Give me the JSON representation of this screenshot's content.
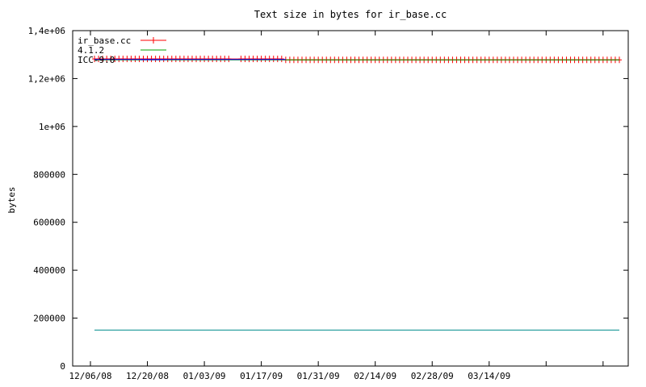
{
  "chart_data": {
    "type": "line",
    "title": "Text size in bytes for ir_base.cc",
    "xlabel": "",
    "ylabel": "bytes",
    "xlim": [
      "2008-12-06",
      "2009-04-15"
    ],
    "ylim": [
      0,
      1400000
    ],
    "x_ticks": [
      "12/06/08",
      "12/20/08",
      "01/03/09",
      "01/17/09",
      "01/31/09",
      "02/14/09",
      "02/28/09",
      "03/14/09"
    ],
    "y_ticks": [
      "0",
      "200000",
      "400000",
      "600000",
      "800000",
      "1e+06",
      "1,2e+06",
      "1,4e+06"
    ],
    "grid": false,
    "legend_position": "top-left",
    "series": [
      {
        "name": "ir_base.cc",
        "color": "#ff0000",
        "marker": "plus",
        "points": [
          [
            "2008-12-07",
            1282000
          ],
          [
            "2008-12-08",
            1282000
          ],
          [
            "2008-12-09",
            1282000
          ],
          [
            "2008-12-10",
            1282000
          ],
          [
            "2008-12-11",
            1282000
          ],
          [
            "2008-12-12",
            1282000
          ],
          [
            "2008-12-13",
            1282000
          ],
          [
            "2008-12-14",
            1282000
          ],
          [
            "2008-12-15",
            1282000
          ],
          [
            "2008-12-16",
            1282000
          ],
          [
            "2008-12-17",
            1282000
          ],
          [
            "2008-12-18",
            1282000
          ],
          [
            "2008-12-19",
            1282000
          ],
          [
            "2008-12-20",
            1282000
          ],
          [
            "2008-12-21",
            1282000
          ],
          [
            "2008-12-22",
            1282000
          ],
          [
            "2008-12-23",
            1282000
          ],
          [
            "2008-12-24",
            1282000
          ],
          [
            "2008-12-25",
            1282000
          ],
          [
            "2008-12-26",
            1282000
          ],
          [
            "2008-12-27",
            1282000
          ],
          [
            "2008-12-28",
            1282000
          ],
          [
            "2008-12-29",
            1282000
          ],
          [
            "2008-12-30",
            1282000
          ],
          [
            "2008-12-31",
            1282000
          ],
          [
            "2009-01-01",
            1282000
          ],
          [
            "2009-01-02",
            1282000
          ],
          [
            "2009-01-03",
            1282000
          ],
          [
            "2009-01-04",
            1282000
          ],
          [
            "2009-01-05",
            1282000
          ],
          [
            "2009-01-06",
            1282000
          ],
          [
            "2009-01-07",
            1282000
          ],
          [
            "2009-01-08",
            1282000
          ],
          [
            "2009-01-09",
            1282000
          ],
          [
            "2009-01-12",
            1282000
          ],
          [
            "2009-01-13",
            1282000
          ],
          [
            "2009-01-14",
            1282000
          ],
          [
            "2009-01-15",
            1282000
          ],
          [
            "2009-01-16",
            1282000
          ],
          [
            "2009-01-17",
            1282000
          ],
          [
            "2009-01-18",
            1282000
          ],
          [
            "2009-01-19",
            1282000
          ],
          [
            "2009-01-20",
            1282000
          ],
          [
            "2009-01-21",
            1282000
          ],
          [
            "2009-01-22",
            1282000
          ],
          [
            "2009-01-23",
            1278000
          ],
          [
            "2009-01-24",
            1278000
          ],
          [
            "2009-01-25",
            1278000
          ],
          [
            "2009-01-26",
            1278000
          ],
          [
            "2009-01-27",
            1278000
          ],
          [
            "2009-01-28",
            1278000
          ],
          [
            "2009-01-29",
            1278000
          ],
          [
            "2009-01-30",
            1278000
          ],
          [
            "2009-01-31",
            1278000
          ],
          [
            "2009-02-01",
            1278000
          ],
          [
            "2009-02-02",
            1278000
          ],
          [
            "2009-02-03",
            1278000
          ],
          [
            "2009-02-04",
            1278000
          ],
          [
            "2009-02-05",
            1278000
          ],
          [
            "2009-02-06",
            1278000
          ],
          [
            "2009-02-07",
            1278000
          ],
          [
            "2009-02-08",
            1278000
          ],
          [
            "2009-02-09",
            1278000
          ],
          [
            "2009-02-10",
            1278000
          ],
          [
            "2009-02-11",
            1278000
          ],
          [
            "2009-02-12",
            1278000
          ],
          [
            "2009-02-13",
            1278000
          ],
          [
            "2009-02-14",
            1278000
          ],
          [
            "2009-02-15",
            1278000
          ],
          [
            "2009-02-16",
            1278000
          ],
          [
            "2009-02-17",
            1278000
          ],
          [
            "2009-02-18",
            1278000
          ],
          [
            "2009-02-19",
            1278000
          ],
          [
            "2009-02-20",
            1278000
          ],
          [
            "2009-02-21",
            1278000
          ],
          [
            "2009-02-22",
            1278000
          ],
          [
            "2009-02-23",
            1278000
          ],
          [
            "2009-02-24",
            1278000
          ],
          [
            "2009-02-25",
            1278000
          ],
          [
            "2009-02-26",
            1278000
          ],
          [
            "2009-02-27",
            1278000
          ],
          [
            "2009-02-28",
            1278000
          ],
          [
            "2009-03-01",
            1278000
          ],
          [
            "2009-03-02",
            1278000
          ],
          [
            "2009-03-03",
            1278000
          ],
          [
            "2009-03-04",
            1278000
          ],
          [
            "2009-03-05",
            1278000
          ],
          [
            "2009-03-06",
            1278000
          ],
          [
            "2009-03-07",
            1278000
          ],
          [
            "2009-03-08",
            1278000
          ],
          [
            "2009-03-09",
            1278000
          ],
          [
            "2009-03-10",
            1278000
          ],
          [
            "2009-03-11",
            1278000
          ],
          [
            "2009-03-12",
            1278000
          ],
          [
            "2009-03-13",
            1278000
          ],
          [
            "2009-03-14",
            1278000
          ],
          [
            "2009-03-15",
            1278000
          ],
          [
            "2009-03-16",
            1278000
          ],
          [
            "2009-03-17",
            1278000
          ],
          [
            "2009-03-18",
            1278000
          ],
          [
            "2009-03-19",
            1278000
          ],
          [
            "2009-03-20",
            1278000
          ],
          [
            "2009-03-21",
            1278000
          ],
          [
            "2009-03-22",
            1278000
          ],
          [
            "2009-03-23",
            1278000
          ],
          [
            "2009-03-24",
            1278000
          ],
          [
            "2009-03-25",
            1278000
          ],
          [
            "2009-03-26",
            1278000
          ],
          [
            "2009-03-27",
            1278000
          ],
          [
            "2009-03-28",
            1278000
          ],
          [
            "2009-03-29",
            1278000
          ],
          [
            "2009-03-30",
            1278000
          ],
          [
            "2009-03-31",
            1278000
          ],
          [
            "2009-04-01",
            1278000
          ],
          [
            "2009-04-02",
            1278000
          ],
          [
            "2009-04-03",
            1278000
          ],
          [
            "2009-04-04",
            1278000
          ],
          [
            "2009-04-05",
            1278000
          ],
          [
            "2009-04-06",
            1278000
          ],
          [
            "2009-04-07",
            1278000
          ],
          [
            "2009-04-08",
            1278000
          ],
          [
            "2009-04-09",
            1278000
          ],
          [
            "2009-04-10",
            1278000
          ],
          [
            "2009-04-11",
            1278000
          ],
          [
            "2009-04-12",
            1278000
          ],
          [
            "2009-04-13",
            1278000
          ],
          [
            "2009-04-14",
            1278000
          ],
          [
            "2009-04-15",
            1278000
          ]
        ]
      },
      {
        "name": "4.1.2",
        "color": "#00a000",
        "marker": "none",
        "points": [
          [
            "2008-12-07",
            1278000
          ],
          [
            "2009-04-15",
            1278000
          ]
        ]
      },
      {
        "name": "ICC-9.0",
        "color": "#0000ff",
        "marker": "none",
        "points": [
          [
            "2008-12-07",
            1280000
          ],
          [
            "2009-01-23",
            1280000
          ]
        ]
      },
      {
        "name": "",
        "color": "#008b8b",
        "marker": "none",
        "points": [
          [
            "2008-12-07",
            150000
          ],
          [
            "2009-04-15",
            150000
          ]
        ]
      }
    ]
  }
}
